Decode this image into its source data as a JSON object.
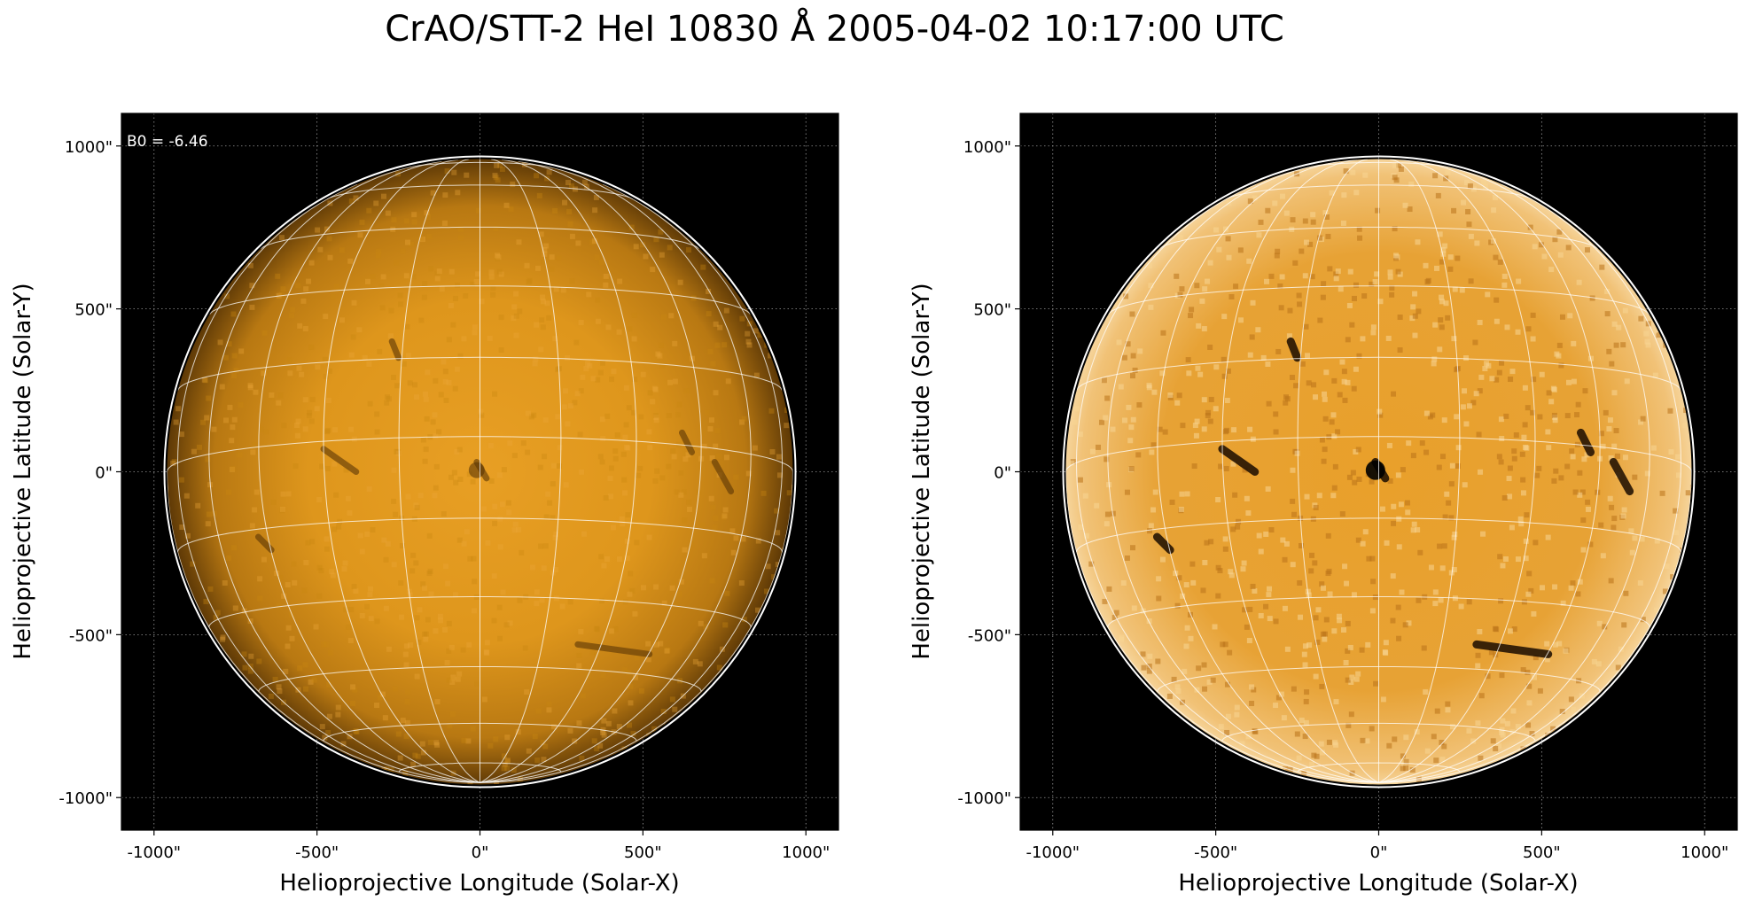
{
  "figure": {
    "title": "CrAO/STT-2 HeI 10830 Å 2005-04-02 10:17:00 UTC"
  },
  "colors": {
    "background": "#000000",
    "disk_center": "#e29a1f",
    "disk_limb": "#6b4208",
    "grid": "#ffffff",
    "minor_grid": "#9a9a9a"
  },
  "panels": [
    {
      "name": "left-panel",
      "annotation": "B0 = -6.46",
      "contrast": "normal",
      "x_axis_label": "Helioprojective Longitude (Solar-X)",
      "y_axis_label": "Helioprojective Latitude (Solar-Y)",
      "x_ticks": [
        "-1000\"",
        "-500\"",
        "0\"",
        "500\"",
        "1000\""
      ],
      "y_ticks": [
        "1000\"",
        "500\"",
        "0\"",
        "-500\"",
        "-1000\""
      ]
    },
    {
      "name": "right-panel",
      "annotation": "",
      "contrast": "enhanced",
      "x_axis_label": "Helioprojective Longitude (Solar-X)",
      "y_axis_label": "Helioprojective Latitude (Solar-Y)",
      "x_ticks": [
        "-1000\"",
        "-500\"",
        "0\"",
        "500\"",
        "1000\""
      ],
      "y_ticks": [
        "1000\"",
        "500\"",
        "0\"",
        "-500\"",
        "-1000\""
      ]
    }
  ],
  "axes": {
    "x_range_arcsec": [
      -1100,
      1100
    ],
    "y_range_arcsec": [
      -1100,
      1100
    ],
    "tick_values_arcsec": [
      -1000,
      -500,
      0,
      500,
      1000
    ],
    "solar_radius_arcsec": 960,
    "heliographic_grid_spacing_deg": 15,
    "b0_deg": -6.46
  }
}
